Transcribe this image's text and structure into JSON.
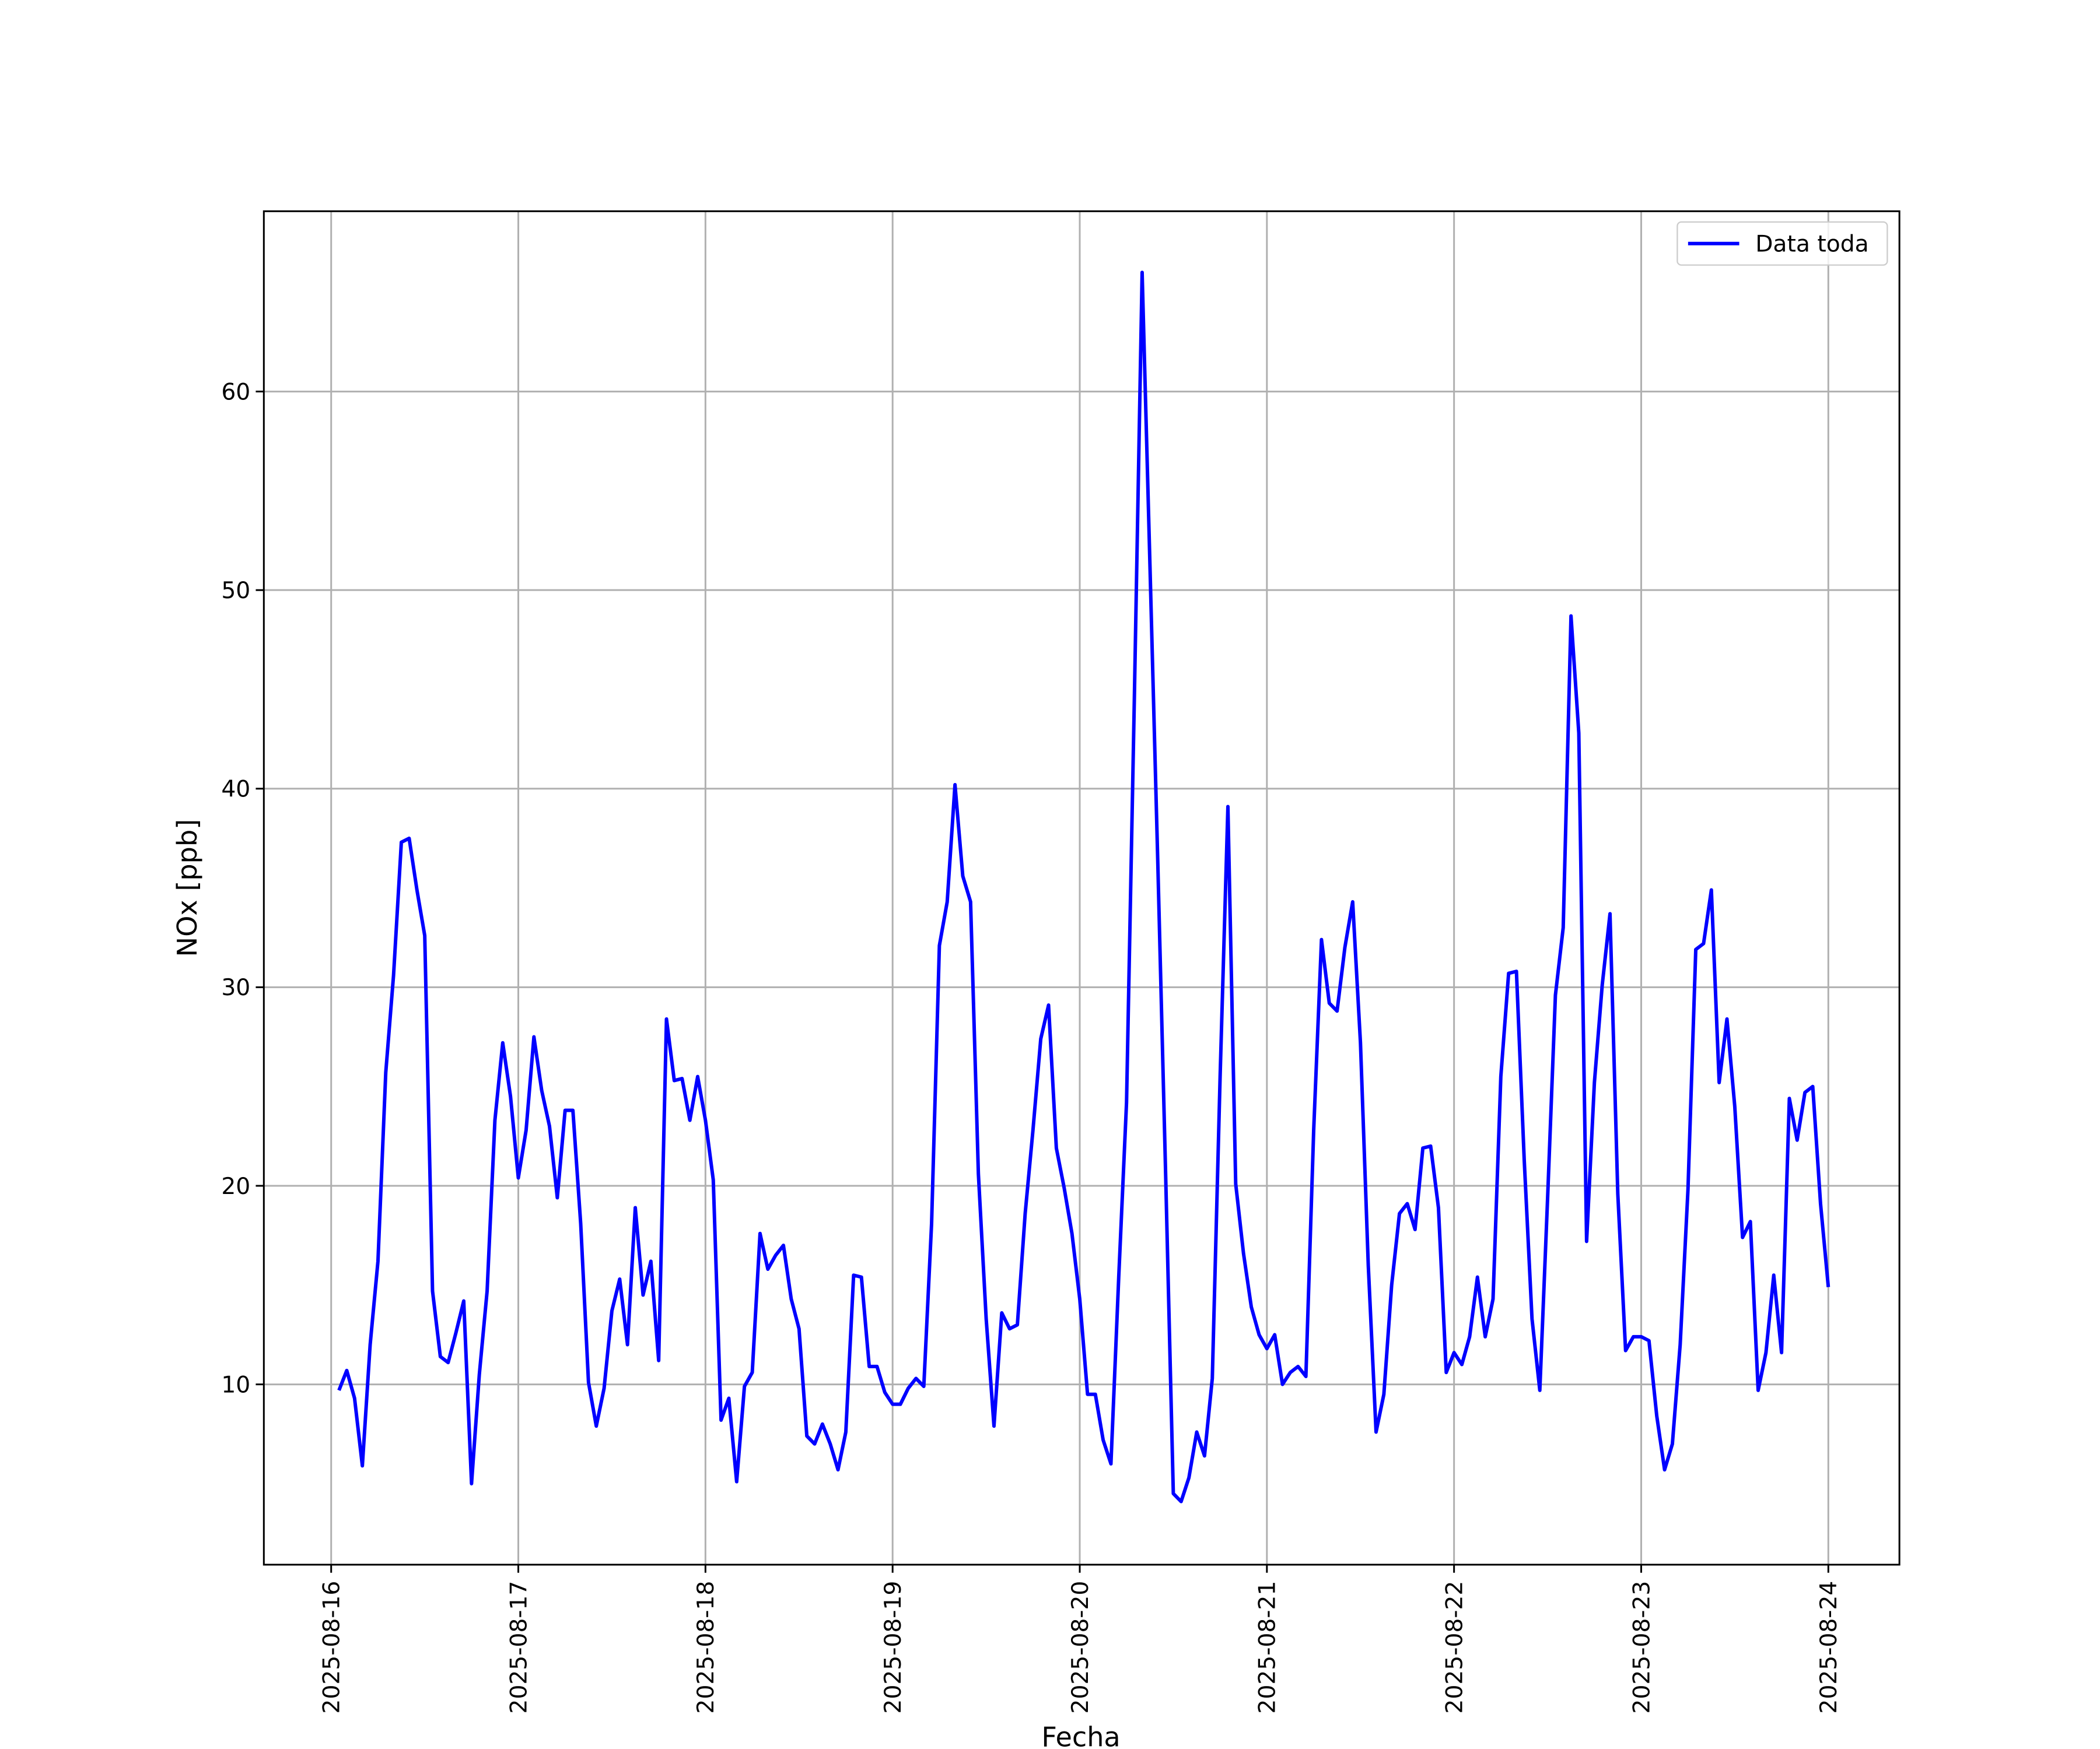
{
  "chart_data": {
    "type": "line",
    "xlabel": "Fecha",
    "ylabel": "NOx [ppb]",
    "x": [
      "2025-08-16 01:00",
      "2025-08-16 02:00",
      "2025-08-16 03:00",
      "2025-08-16 04:00",
      "2025-08-16 05:00",
      "2025-08-16 06:00",
      "2025-08-16 07:00",
      "2025-08-16 08:00",
      "2025-08-16 09:00",
      "2025-08-16 10:00",
      "2025-08-16 11:00",
      "2025-08-16 12:00",
      "2025-08-16 13:00",
      "2025-08-16 14:00",
      "2025-08-16 15:00",
      "2025-08-16 16:00",
      "2025-08-16 17:00",
      "2025-08-16 18:00",
      "2025-08-16 19:00",
      "2025-08-16 20:00",
      "2025-08-16 21:00",
      "2025-08-16 22:00",
      "2025-08-16 23:00",
      "2025-08-17 00:00",
      "2025-08-17 01:00",
      "2025-08-17 02:00",
      "2025-08-17 03:00",
      "2025-08-17 04:00",
      "2025-08-17 05:00",
      "2025-08-17 06:00",
      "2025-08-17 07:00",
      "2025-08-17 08:00",
      "2025-08-17 09:00",
      "2025-08-17 10:00",
      "2025-08-17 11:00",
      "2025-08-17 12:00",
      "2025-08-17 13:00",
      "2025-08-17 14:00",
      "2025-08-17 15:00",
      "2025-08-17 16:00",
      "2025-08-17 17:00",
      "2025-08-17 18:00",
      "2025-08-17 19:00",
      "2025-08-17 20:00",
      "2025-08-17 21:00",
      "2025-08-17 22:00",
      "2025-08-17 23:00",
      "2025-08-18 00:00",
      "2025-08-18 01:00",
      "2025-08-18 02:00",
      "2025-08-18 03:00",
      "2025-08-18 04:00",
      "2025-08-18 05:00",
      "2025-08-18 06:00",
      "2025-08-18 07:00",
      "2025-08-18 08:00",
      "2025-08-18 09:00",
      "2025-08-18 10:00",
      "2025-08-18 11:00",
      "2025-08-18 12:00",
      "2025-08-18 13:00",
      "2025-08-18 14:00",
      "2025-08-18 15:00",
      "2025-08-18 16:00",
      "2025-08-18 17:00",
      "2025-08-18 18:00",
      "2025-08-18 19:00",
      "2025-08-18 20:00",
      "2025-08-18 21:00",
      "2025-08-18 22:00",
      "2025-08-18 23:00",
      "2025-08-19 00:00",
      "2025-08-19 01:00",
      "2025-08-19 02:00",
      "2025-08-19 03:00",
      "2025-08-19 04:00",
      "2025-08-19 05:00",
      "2025-08-19 06:00",
      "2025-08-19 07:00",
      "2025-08-19 08:00",
      "2025-08-19 09:00",
      "2025-08-19 10:00",
      "2025-08-19 11:00",
      "2025-08-19 12:00",
      "2025-08-19 13:00",
      "2025-08-19 14:00",
      "2025-08-19 15:00",
      "2025-08-19 16:00",
      "2025-08-19 17:00",
      "2025-08-19 18:00",
      "2025-08-19 19:00",
      "2025-08-19 20:00",
      "2025-08-19 21:00",
      "2025-08-19 22:00",
      "2025-08-19 23:00",
      "2025-08-20 00:00",
      "2025-08-20 01:00",
      "2025-08-20 02:00",
      "2025-08-20 03:00",
      "2025-08-20 04:00",
      "2025-08-20 05:00",
      "2025-08-20 06:00",
      "2025-08-20 07:00",
      "2025-08-20 08:00",
      "2025-08-20 09:00",
      "2025-08-20 10:00",
      "2025-08-20 11:00",
      "2025-08-20 12:00",
      "2025-08-20 13:00",
      "2025-08-20 14:00",
      "2025-08-20 15:00",
      "2025-08-20 16:00",
      "2025-08-20 17:00",
      "2025-08-20 18:00",
      "2025-08-20 19:00",
      "2025-08-20 20:00",
      "2025-08-20 21:00",
      "2025-08-20 22:00",
      "2025-08-20 23:00",
      "2025-08-21 00:00",
      "2025-08-21 01:00",
      "2025-08-21 02:00",
      "2025-08-21 03:00",
      "2025-08-21 04:00",
      "2025-08-21 05:00",
      "2025-08-21 06:00",
      "2025-08-21 07:00",
      "2025-08-21 08:00",
      "2025-08-21 09:00",
      "2025-08-21 10:00",
      "2025-08-21 11:00",
      "2025-08-21 12:00",
      "2025-08-21 13:00",
      "2025-08-21 14:00",
      "2025-08-21 15:00",
      "2025-08-21 16:00",
      "2025-08-21 17:00",
      "2025-08-21 18:00",
      "2025-08-21 19:00",
      "2025-08-21 20:00",
      "2025-08-21 21:00",
      "2025-08-21 22:00",
      "2025-08-21 23:00",
      "2025-08-22 00:00",
      "2025-08-22 01:00",
      "2025-08-22 02:00",
      "2025-08-22 03:00",
      "2025-08-22 04:00",
      "2025-08-22 05:00",
      "2025-08-22 06:00",
      "2025-08-22 07:00",
      "2025-08-22 08:00",
      "2025-08-22 09:00",
      "2025-08-22 10:00",
      "2025-08-22 11:00",
      "2025-08-22 12:00",
      "2025-08-22 13:00",
      "2025-08-22 14:00",
      "2025-08-22 15:00",
      "2025-08-22 16:00",
      "2025-08-22 17:00",
      "2025-08-22 18:00",
      "2025-08-22 19:00",
      "2025-08-22 20:00",
      "2025-08-22 21:00",
      "2025-08-22 22:00",
      "2025-08-22 23:00",
      "2025-08-23 00:00",
      "2025-08-23 01:00",
      "2025-08-23 02:00",
      "2025-08-23 03:00",
      "2025-08-23 04:00",
      "2025-08-23 05:00",
      "2025-08-23 06:00",
      "2025-08-23 07:00",
      "2025-08-23 08:00",
      "2025-08-23 09:00",
      "2025-08-23 10:00",
      "2025-08-23 11:00",
      "2025-08-23 12:00",
      "2025-08-23 13:00",
      "2025-08-23 14:00",
      "2025-08-23 15:00",
      "2025-08-23 16:00",
      "2025-08-23 17:00",
      "2025-08-23 18:00",
      "2025-08-23 19:00",
      "2025-08-23 20:00",
      "2025-08-23 21:00",
      "2025-08-23 22:00",
      "2025-08-23 23:00",
      "2025-08-24 00:00"
    ],
    "series": [
      {
        "name": "Data toda",
        "color": "#0000ff",
        "values": [
          9.7,
          10.7,
          9.3,
          5.9,
          12.0,
          16.2,
          25.7,
          30.6,
          37.3,
          37.5,
          34.9,
          32.6,
          14.7,
          11.4,
          11.1,
          12.6,
          14.2,
          5.0,
          10.5,
          14.7,
          23.3,
          27.2,
          24.5,
          20.4,
          22.8,
          27.5,
          24.8,
          23.0,
          19.4,
          23.8,
          23.8,
          18.1,
          10.1,
          7.9,
          9.8,
          13.7,
          15.3,
          12.0,
          18.9,
          14.5,
          16.2,
          11.2,
          28.4,
          25.3,
          25.4,
          23.3,
          25.5,
          23.3,
          20.3,
          8.2,
          9.3,
          5.1,
          9.9,
          10.6,
          17.6,
          15.8,
          16.5,
          17.0,
          14.3,
          12.8,
          7.4,
          7.0,
          8.0,
          7.0,
          5.7,
          7.6,
          15.5,
          15.4,
          10.9,
          10.9,
          9.6,
          9.0,
          9.0,
          9.8,
          10.3,
          9.9,
          18.1,
          32.1,
          34.3,
          40.2,
          35.6,
          34.3,
          20.6,
          13.3,
          7.9,
          13.6,
          12.8,
          13.0,
          18.6,
          22.8,
          27.4,
          29.1,
          21.9,
          19.9,
          17.6,
          14.3,
          9.5,
          9.5,
          7.2,
          6.0,
          15.4,
          24.2,
          44.5,
          66.0,
          51.3,
          36.4,
          20.8,
          4.5,
          4.1,
          5.3,
          7.6,
          6.4,
          10.3,
          25.5,
          39.1,
          20.1,
          16.6,
          13.9,
          12.5,
          11.8,
          12.5,
          10.0,
          10.6,
          10.9,
          10.4,
          22.8,
          32.4,
          29.2,
          28.8,
          32.0,
          34.3,
          27.2,
          16.0,
          7.6,
          9.5,
          15.0,
          18.6,
          19.1,
          17.8,
          21.9,
          22.0,
          18.9,
          10.6,
          11.6,
          11.0,
          12.4,
          15.4,
          12.4,
          14.3,
          25.5,
          30.7,
          30.8,
          21.3,
          13.3,
          9.7,
          19.4,
          29.6,
          33.0,
          48.7,
          42.8,
          17.2,
          25.2,
          30.1,
          33.7,
          19.6,
          11.7,
          12.4,
          12.4,
          12.2,
          8.4,
          5.7,
          7.0,
          12.0,
          19.8,
          31.9,
          32.2,
          34.9,
          25.2,
          28.4,
          24.0,
          17.4,
          18.2,
          9.7,
          11.6,
          15.5,
          11.6,
          24.4,
          22.3,
          24.7,
          25.0,
          19.1,
          14.9
        ]
      }
    ],
    "xlim": [
      "2025-08-15 15:22",
      "2025-08-24 09:07"
    ],
    "xticks": [
      "2025-08-16",
      "2025-08-17",
      "2025-08-18",
      "2025-08-19",
      "2025-08-20",
      "2025-08-21",
      "2025-08-22",
      "2025-08-23",
      "2025-08-24"
    ],
    "ylim": [
      0.92,
      69.08
    ],
    "yticks": [
      10,
      20,
      30,
      40,
      50,
      60
    ],
    "grid": true,
    "legend": "upper right"
  }
}
